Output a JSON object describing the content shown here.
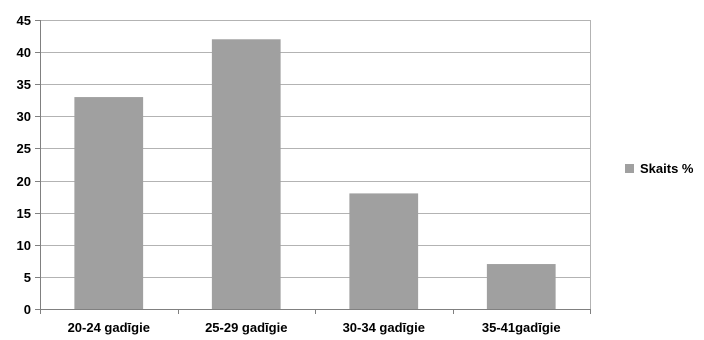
{
  "chart_data": {
    "type": "bar",
    "categories": [
      "20-24 gadīgie",
      "25-29 gadīgie",
      "30-34 gadīgie",
      "35-41gadīgie"
    ],
    "series": [
      {
        "name": "Skaits %",
        "values": [
          33,
          42,
          18,
          7
        ],
        "color": "#a0a0a0"
      }
    ],
    "title": "",
    "xlabel": "",
    "ylabel": "",
    "ylim": [
      0,
      45
    ],
    "yticks": [
      0,
      5,
      10,
      15,
      20,
      25,
      30,
      35,
      40,
      45
    ],
    "grid": true,
    "legend": "right"
  }
}
